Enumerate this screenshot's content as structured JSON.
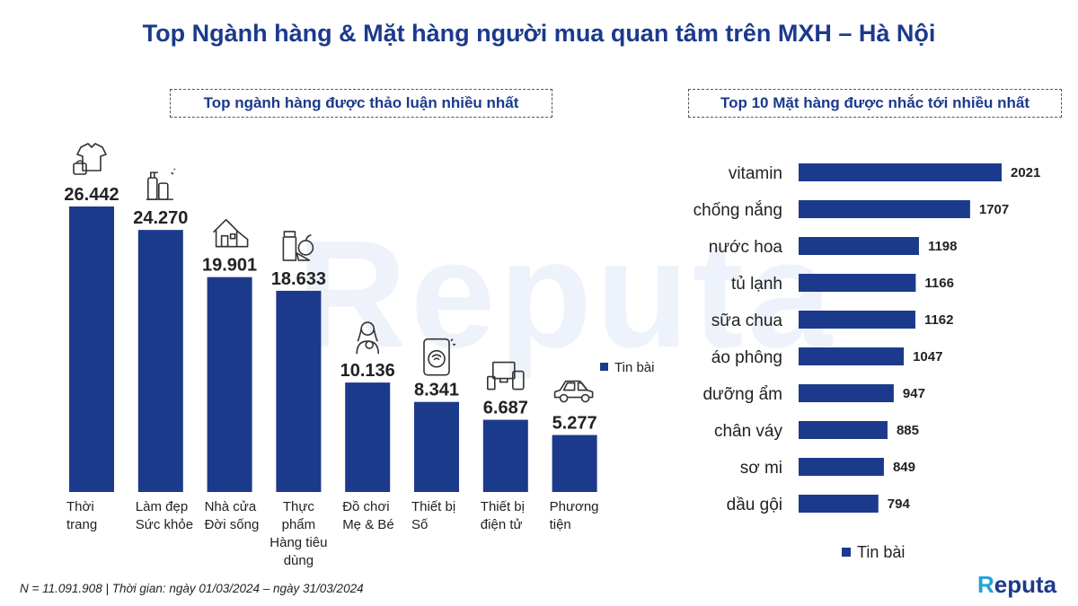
{
  "title": "Top Ngành hàng & Mặt hàng người mua quan tâm trên MXH – Hà Nội",
  "watermark": "Reputa",
  "footer": "N = 11.091.908 | Thời gian: ngày 01/03/2024 – ngày 31/03/2024",
  "logo": {
    "mark": "R",
    "rest": "eputa"
  },
  "colors": {
    "bar": "#1c3a8c",
    "title": "#1c3a8c"
  },
  "chart_data": [
    {
      "type": "bar",
      "title": "Top ngành hàng được thảo luận nhiều nhất",
      "categories": [
        [
          "Thời",
          "trang"
        ],
        [
          "Làm đẹp",
          "Sức khỏe"
        ],
        [
          "Nhà cửa",
          "Đời sống"
        ],
        [
          "Thực",
          "phẩm",
          "Hàng tiêu",
          "dùng"
        ],
        [
          "Đồ chơi",
          "Mẹ & Bé"
        ],
        [
          "Thiết bị",
          "Số"
        ],
        [
          "Thiết bị",
          "điện tử"
        ],
        [
          "Phương",
          "tiện"
        ]
      ],
      "values": [
        26442,
        24270,
        19901,
        18633,
        10136,
        8341,
        6687,
        5277
      ],
      "value_labels": [
        "26.442",
        "24.270",
        "19.901",
        "18.633",
        "10.136",
        "8.341",
        "6.687",
        "5.277"
      ],
      "icons": [
        "clothes-icon",
        "cosmetics-icon",
        "house-icon",
        "food-icon",
        "mother-baby-icon",
        "smartphone-icon",
        "electronics-icon",
        "car-icon"
      ],
      "series": [
        {
          "name": "Tin bài"
        }
      ],
      "legend": "right"
    },
    {
      "type": "bar",
      "orientation": "horizontal",
      "title": "Top 10 Mặt hàng được nhắc tới nhiều nhất",
      "categories": [
        "vitamin",
        "chống nắng",
        "nước hoa",
        "tủ lạnh",
        "sữa chua",
        "áo phông",
        "dưỡng ẩm",
        "chân váy",
        "sơ mi",
        "dầu gội"
      ],
      "values": [
        2021,
        1707,
        1198,
        1166,
        1162,
        1047,
        947,
        885,
        849,
        794
      ],
      "series": [
        {
          "name": "Tin bài"
        }
      ],
      "legend": "bottom"
    }
  ]
}
